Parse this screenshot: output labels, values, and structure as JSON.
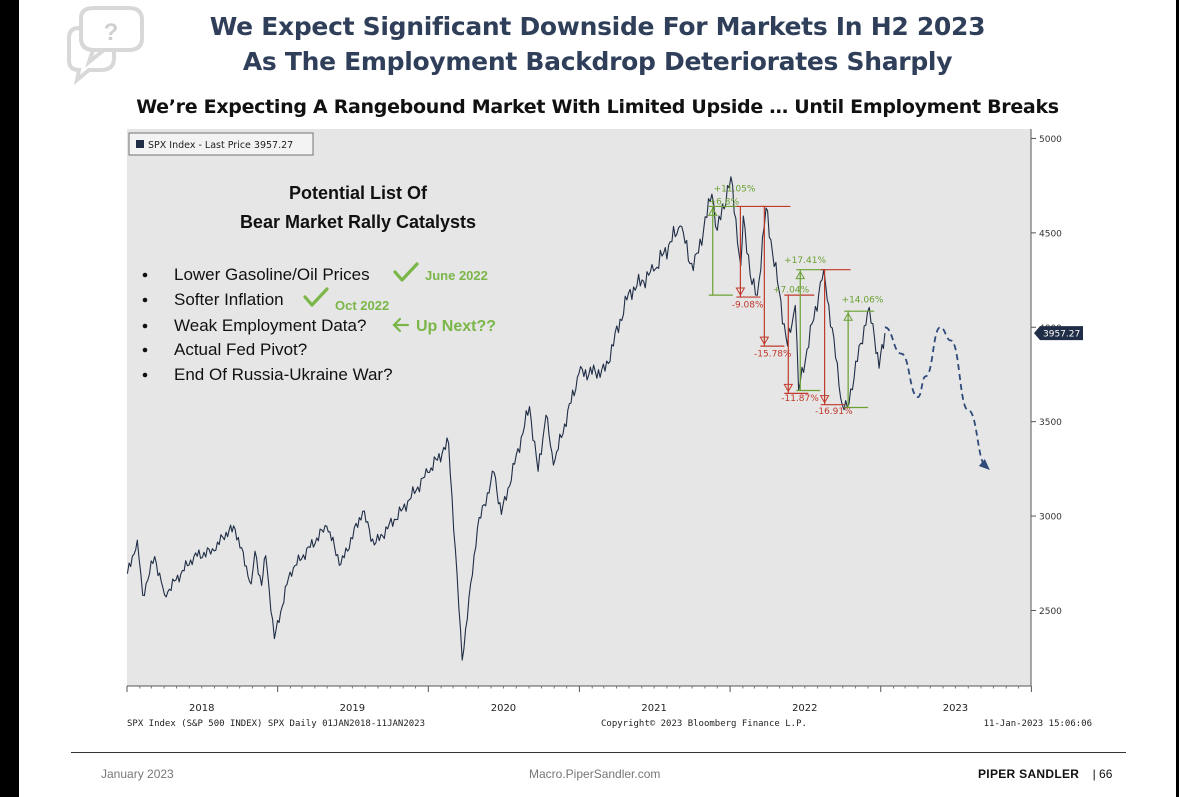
{
  "header": {
    "title_line1": "We Expect Significant Downside For Markets In H2 2023",
    "title_line2": "As The Employment Backdrop Deteriorates Sharply",
    "subtitle": "We’re Expecting A Rangebound Market With Limited Upside … Until Employment Breaks"
  },
  "icons": {
    "corner": "question-speech-bubble-icon"
  },
  "callout": {
    "title_line1": "Potential List Of",
    "title_line2": "Bear Market Rally Catalysts",
    "items": [
      {
        "text": "Lower Gasoline/Oil Prices",
        "check": true,
        "note": "June 2022",
        "arrow": false
      },
      {
        "text": "Softer Inflation",
        "check": true,
        "note": "Oct 2022",
        "arrow": false
      },
      {
        "text": "Weak Employment Data?",
        "check": false,
        "note": "Up Next??",
        "arrow": true
      },
      {
        "text": "Actual Fed Pivot?",
        "check": false,
        "note": "",
        "arrow": false
      },
      {
        "text": "End Of Russia-Ukraine War?",
        "check": false,
        "note": "",
        "arrow": false
      }
    ]
  },
  "chart_data": {
    "type": "line",
    "legend": "SPX Index - Last Price 3957.27",
    "last_price_label": "3957.27",
    "ylim": [
      2100,
      5050
    ],
    "y_ticks": [
      2500,
      3000,
      3500,
      4000,
      4500,
      5000
    ],
    "x_labels": [
      "2018",
      "2019",
      "2020",
      "2021",
      "2022",
      "2023"
    ],
    "series": [
      {
        "values": [
          [
            "2018-01-02",
            2695
          ],
          [
            "2018-01-26",
            2872
          ],
          [
            "2018-02-08",
            2581
          ],
          [
            "2018-03-09",
            2786
          ],
          [
            "2018-04-02",
            2582
          ],
          [
            "2018-06-12",
            2786
          ],
          [
            "2018-07-31",
            2816
          ],
          [
            "2018-08-29",
            2914
          ],
          [
            "2018-09-20",
            2931
          ],
          [
            "2018-10-29",
            2641
          ],
          [
            "2018-11-07",
            2814
          ],
          [
            "2018-11-23",
            2633
          ],
          [
            "2018-12-03",
            2790
          ],
          [
            "2018-12-24",
            2351
          ],
          [
            "2019-01-31",
            2704
          ],
          [
            "2019-04-30",
            2946
          ],
          [
            "2019-06-03",
            2744
          ],
          [
            "2019-07-26",
            3025
          ],
          [
            "2019-08-23",
            2847
          ],
          [
            "2019-10-31",
            3038
          ],
          [
            "2019-12-31",
            3231
          ],
          [
            "2020-02-19",
            3386
          ],
          [
            "2020-03-23",
            2237
          ],
          [
            "2020-04-29",
            2939
          ],
          [
            "2020-06-08",
            3232
          ],
          [
            "2020-06-26",
            3009
          ],
          [
            "2020-09-02",
            3580
          ],
          [
            "2020-09-23",
            3237
          ],
          [
            "2020-10-12",
            3534
          ],
          [
            "2020-10-30",
            3270
          ],
          [
            "2020-12-31",
            3756
          ],
          [
            "2021-03-04",
            3768
          ],
          [
            "2021-04-30",
            4181
          ],
          [
            "2021-06-30",
            4298
          ],
          [
            "2021-09-02",
            4537
          ],
          [
            "2021-10-04",
            4300
          ],
          [
            "2021-11-18",
            4705
          ],
          [
            "2021-12-01",
            4513
          ],
          [
            "2022-01-03",
            4797
          ],
          [
            "2022-01-27",
            4326
          ],
          [
            "2022-02-02",
            4589
          ],
          [
            "2022-02-23",
            4226
          ],
          [
            "2022-03-08",
            4170
          ],
          [
            "2022-03-29",
            4631
          ],
          [
            "2022-05-20",
            3901
          ],
          [
            "2022-06-08",
            4116
          ],
          [
            "2022-06-16",
            3667
          ],
          [
            "2022-08-16",
            4305
          ],
          [
            "2022-09-30",
            3586
          ],
          [
            "2022-10-12",
            3577
          ],
          [
            "2022-11-30",
            4080
          ],
          [
            "2022-12-13",
            4019
          ],
          [
            "2022-12-28",
            3783
          ],
          [
            "2023-01-11",
            3969
          ]
        ]
      },
      {
        "name": "projection",
        "values": [
          [
            "2023-01-11",
            4000
          ],
          [
            "2023-02-20",
            3860
          ],
          [
            "2023-04-01",
            3630
          ],
          [
            "2023-04-20",
            3740
          ],
          [
            "2023-05-25",
            4000
          ],
          [
            "2023-06-20",
            3930
          ],
          [
            "2023-08-01",
            3560
          ],
          [
            "2023-09-15",
            3260
          ]
        ]
      }
    ],
    "annotations": [
      {
        "text": "+11.05%",
        "color": "#6aa031"
      },
      {
        "text": "+6.8%",
        "color": "#6aa031"
      },
      {
        "text": "-9.08%",
        "color": "#c0392b"
      },
      {
        "text": "-15.78%",
        "color": "#c0392b"
      },
      {
        "text": "+7.04%",
        "color": "#6aa031"
      },
      {
        "text": "+17.41%",
        "color": "#6aa031"
      },
      {
        "text": "-11.87%",
        "color": "#c0392b"
      },
      {
        "text": "-16.91%",
        "color": "#c0392b"
      },
      {
        "text": "+14.06%",
        "color": "#6aa031"
      }
    ],
    "source_left": "SPX Index (S&P 500 INDEX) SPX  Daily 01JAN2018-11JAN2023",
    "source_mid": "Copyright© 2023 Bloomberg Finance L.P.",
    "source_right": "11-Jan-2023 15:06:06"
  },
  "footer": {
    "date": "January 2023",
    "url": "Macro.PiperSandler.com",
    "brand": "PIPER SANDLER",
    "page": "| 66"
  },
  "colors": {
    "title": "#2f3f5a",
    "plot_bg": "#e6e6e6",
    "line": "#1f2d46",
    "green": "#6aa031",
    "red": "#c0392b",
    "check": "#7ab648"
  }
}
